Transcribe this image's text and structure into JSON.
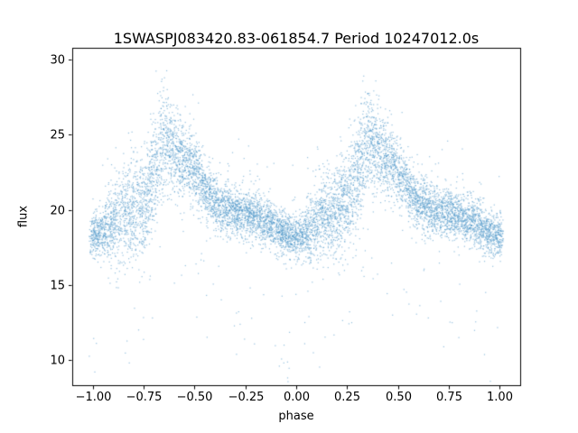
{
  "chart_data": {
    "type": "scatter",
    "title": "1SWASPJ083420.83-061854.7 Period 10247012.0s",
    "xlabel": "phase",
    "ylabel": "flux",
    "xlim": [
      -1.1,
      1.1
    ],
    "ylim": [
      8.3,
      30.8
    ],
    "grid": false,
    "legend": "none",
    "xticks": {
      "values": [
        -1.0,
        -0.75,
        -0.5,
        -0.25,
        0.0,
        0.25,
        0.5,
        0.75,
        1.0
      ],
      "labels": [
        "−1.00",
        "−0.75",
        "−0.50",
        "−0.25",
        "0.00",
        "0.25",
        "0.50",
        "0.75",
        "1.00"
      ]
    },
    "yticks": {
      "values": [
        10,
        15,
        20,
        25,
        30
      ],
      "labels": [
        "10",
        "15",
        "20",
        "25",
        "30"
      ]
    },
    "marker_color": "#4c96c8",
    "marker_size_px": 1.2,
    "marker_alpha": 0.6,
    "n_points": 9000,
    "seed": 42,
    "x_range": [
      -1.01,
      1.01
    ],
    "stripe_quantization": 0.01,
    "stripe_jitter": 0.004,
    "phase_profile": {
      "description": "Folded light curve repeated over two periods; mean flux and scatter (std) sampled every 0.05 in phase, phase 0 = minimum near x=0, peak brightening near phase 0.35 (x=0.35 and x=-0.65).",
      "phase": [
        0.0,
        0.05,
        0.1,
        0.15,
        0.2,
        0.25,
        0.3,
        0.35,
        0.4,
        0.45,
        0.5,
        0.55,
        0.6,
        0.65,
        0.7,
        0.75,
        0.8,
        0.85,
        0.9,
        0.95
      ],
      "mean_flux": [
        18.2,
        18.5,
        19.2,
        19.6,
        19.9,
        20.5,
        22.2,
        24.6,
        24.0,
        23.2,
        22.6,
        21.4,
        20.5,
        20.0,
        19.9,
        19.8,
        19.6,
        19.2,
        18.8,
        18.4
      ],
      "std_flux": [
        0.7,
        0.9,
        1.3,
        1.5,
        1.6,
        1.7,
        1.9,
        1.7,
        1.4,
        1.2,
        1.1,
        1.0,
        0.9,
        0.9,
        0.8,
        0.8,
        0.8,
        0.8,
        0.8,
        0.7
      ]
    },
    "outliers": {
      "fraction_low": 0.012,
      "fraction_high": 0.008,
      "low_offset_range": [
        3,
        10
      ],
      "high_offset_range": [
        2,
        5
      ],
      "observed_min_flux": 9.3,
      "observed_max_flux": 29.7
    }
  }
}
